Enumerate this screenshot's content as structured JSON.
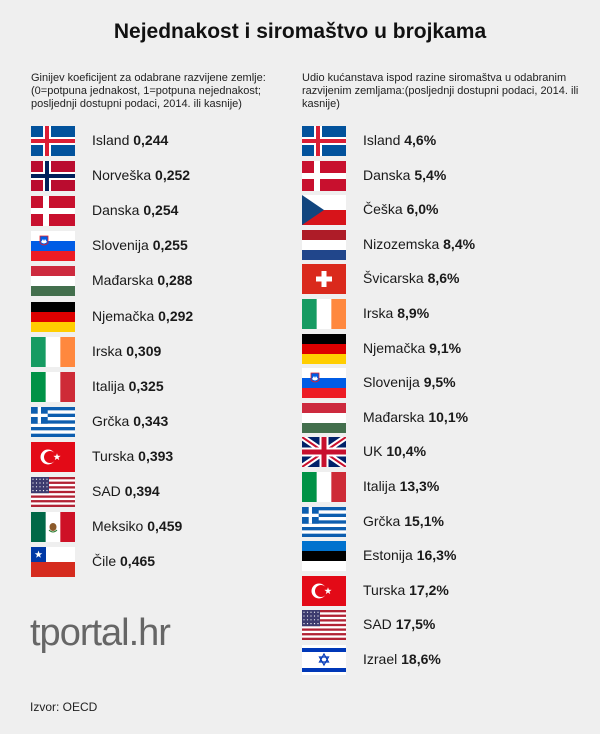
{
  "title": "Nejednakost i siromaštvo u brojkama",
  "logo": "tportal.hr",
  "source": "Izvor: OECD",
  "chart_data": [
    {
      "type": "table",
      "title": "Ginijev koeficijent za odabrane razvijene zemlje: (0=potpuna jednakost, 1=potpuna nejednakost; posljednji dostupni podaci, 2014. ili kasnije)",
      "rows": [
        {
          "country": "Island",
          "value": "0,244",
          "flag": "iceland"
        },
        {
          "country": "Norveška",
          "value": "0,252",
          "flag": "norway"
        },
        {
          "country": "Danska",
          "value": "0,254",
          "flag": "denmark"
        },
        {
          "country": "Slovenija",
          "value": "0,255",
          "flag": "slovenia"
        },
        {
          "country": "Mađarska",
          "value": "0,288",
          "flag": "hungary"
        },
        {
          "country": "Njemačka",
          "value": "0,292",
          "flag": "germany"
        },
        {
          "country": "Irska",
          "value": "0,309",
          "flag": "ireland"
        },
        {
          "country": "Italija",
          "value": "0,325",
          "flag": "italy"
        },
        {
          "country": "Grčka",
          "value": "0,343",
          "flag": "greece"
        },
        {
          "country": "Turska",
          "value": "0,393",
          "flag": "turkey"
        },
        {
          "country": "SAD",
          "value": "0,394",
          "flag": "usa"
        },
        {
          "country": "Meksiko",
          "value": "0,459",
          "flag": "mexico"
        },
        {
          "country": "Čile",
          "value": "0,465",
          "flag": "chile"
        }
      ]
    },
    {
      "type": "table",
      "title": "Udio kućanstava ispod razine siromaštva u odabranim razvijenim zemljama:(posljednji dostupni podaci, 2014. ili kasnije)",
      "rows": [
        {
          "country": "Island",
          "value": "4,6%",
          "flag": "iceland"
        },
        {
          "country": "Danska",
          "value": "5,4%",
          "flag": "denmark"
        },
        {
          "country": "Češka",
          "value": "6,0%",
          "flag": "czech"
        },
        {
          "country": "Nizozemska",
          "value": "8,4%",
          "flag": "netherlands"
        },
        {
          "country": "Švicarska",
          "value": "8,6%",
          "flag": "switzerland"
        },
        {
          "country": "Irska",
          "value": "8,9%",
          "flag": "ireland"
        },
        {
          "country": "Njemačka",
          "value": "9,1%",
          "flag": "germany"
        },
        {
          "country": "Slovenija",
          "value": "9,5%",
          "flag": "slovenia"
        },
        {
          "country": "Mađarska",
          "value": "10,1%",
          "flag": "hungary"
        },
        {
          "country": "UK",
          "value": "10,4%",
          "flag": "uk"
        },
        {
          "country": "Italija",
          "value": "13,3%",
          "flag": "italy"
        },
        {
          "country": "Grčka",
          "value": "15,1%",
          "flag": "greece"
        },
        {
          "country": "Estonija",
          "value": "16,3%",
          "flag": "estonia"
        },
        {
          "country": "Turska",
          "value": "17,2%",
          "flag": "turkey"
        },
        {
          "country": "SAD",
          "value": "17,5%",
          "flag": "usa"
        },
        {
          "country": "Izrael",
          "value": "18,6%",
          "flag": "israel"
        }
      ]
    }
  ]
}
